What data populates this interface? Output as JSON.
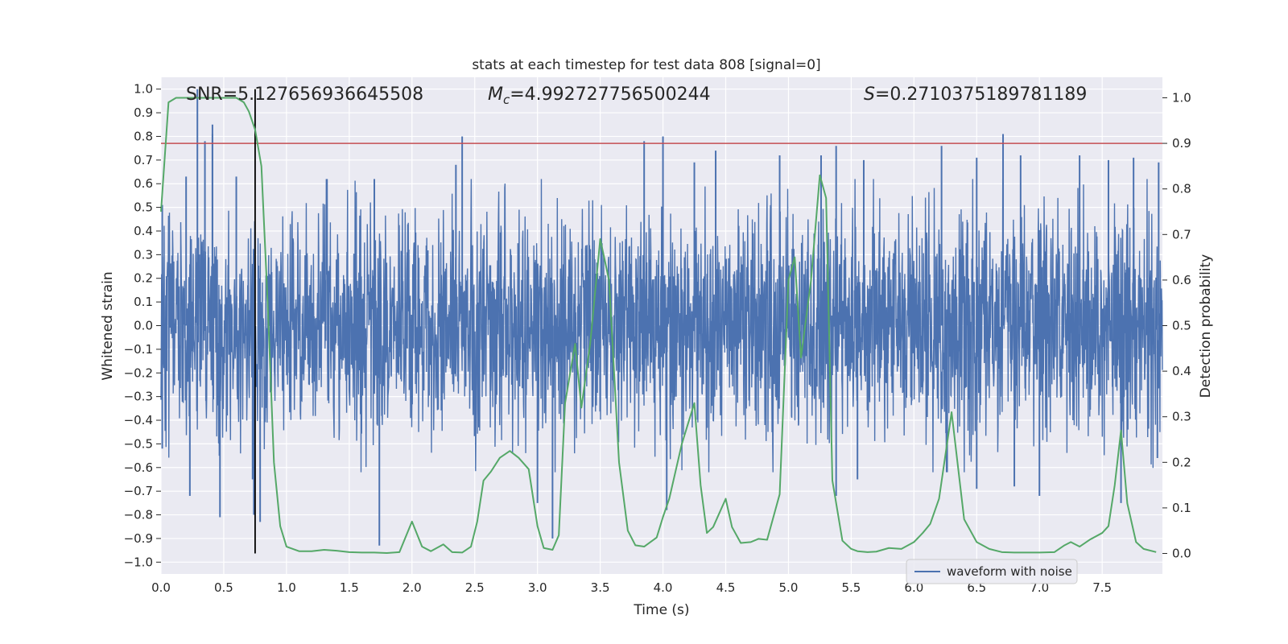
{
  "chart_data": {
    "type": "line",
    "title": "stats at each timestep for test data 808 [signal=0]",
    "xlabel": "Time (s)",
    "ylabel_left": "Whitened strain",
    "ylabel_right": "Detection probability",
    "xlim": [
      0.0,
      7.98
    ],
    "ylim_left": [
      -1.05,
      1.05
    ],
    "ylim_right": [
      -0.045,
      1.045
    ],
    "x_ticks": [
      "0.0",
      "0.5",
      "1.0",
      "1.5",
      "2.0",
      "2.5",
      "3.0",
      "3.5",
      "4.0",
      "4.5",
      "5.0",
      "5.5",
      "6.0",
      "6.5",
      "7.0",
      "7.5"
    ],
    "y_left_ticks": [
      "1.0",
      "0.9",
      "0.8",
      "0.7",
      "0.6",
      "0.5",
      "0.4",
      "0.3",
      "0.2",
      "0.1",
      "0.0",
      "−0.1",
      "−0.2",
      "−0.3",
      "−0.4",
      "−0.5",
      "−0.6",
      "−0.7",
      "−0.8",
      "−0.9",
      "−1.0"
    ],
    "y_right_ticks": [
      "1.0",
      "0.9",
      "0.8",
      "0.7",
      "0.6",
      "0.5",
      "0.4",
      "0.3",
      "0.2",
      "0.1",
      "0.0"
    ],
    "grid": true,
    "legend": {
      "position": "lower-right",
      "entries": [
        "waveform with noise"
      ]
    },
    "annotations": {
      "snr": "SNR=5.127656936645508",
      "mc_symbol": "M",
      "mc_sub": "c",
      "mc_value": "=4.992727756500244",
      "s_symbol": "S",
      "s_value": "=0.2710375189781189"
    },
    "threshold": {
      "axis": "right",
      "value": 0.9
    },
    "marker_time": 0.75,
    "waveform": {
      "name": "waveform with noise",
      "axis": "left",
      "t_range": [
        0.0,
        7.98
      ],
      "envelope": 0.45,
      "spikes": [
        {
          "t": 0.29,
          "v": 1.0
        },
        {
          "t": 0.41,
          "v": 0.85
        },
        {
          "t": 0.41,
          "v": 0.81
        },
        {
          "t": 0.2,
          "v": 0.63
        },
        {
          "t": 0.35,
          "v": 0.78
        },
        {
          "t": 0.23,
          "v": -0.72
        },
        {
          "t": 0.47,
          "v": -0.81
        },
        {
          "t": 0.74,
          "v": -0.8
        },
        {
          "t": 0.79,
          "v": -0.83
        },
        {
          "t": 0.6,
          "v": 0.63
        },
        {
          "t": 0.73,
          "v": -0.65
        },
        {
          "t": 1.74,
          "v": -0.93
        },
        {
          "t": 1.7,
          "v": 0.62
        },
        {
          "t": 2.4,
          "v": 0.8
        },
        {
          "t": 2.35,
          "v": 0.68
        },
        {
          "t": 3.12,
          "v": -0.9
        },
        {
          "t": 3.0,
          "v": -0.75
        },
        {
          "t": 3.85,
          "v": 0.78
        },
        {
          "t": 4.0,
          "v": 0.8
        },
        {
          "t": 4.03,
          "v": -0.78
        },
        {
          "t": 4.25,
          "v": 0.69
        },
        {
          "t": 4.42,
          "v": 0.74
        },
        {
          "t": 4.93,
          "v": 0.72
        },
        {
          "t": 5.26,
          "v": 0.72
        },
        {
          "t": 5.38,
          "v": 0.76
        },
        {
          "t": 5.38,
          "v": -0.72
        },
        {
          "t": 5.6,
          "v": 0.7
        },
        {
          "t": 5.55,
          "v": -0.65
        },
        {
          "t": 6.22,
          "v": 0.76
        },
        {
          "t": 6.5,
          "v": 0.71
        },
        {
          "t": 6.71,
          "v": 0.81
        },
        {
          "t": 6.85,
          "v": 0.72
        },
        {
          "t": 6.5,
          "v": -0.69
        },
        {
          "t": 6.8,
          "v": -0.68
        },
        {
          "t": 7.0,
          "v": -0.72
        },
        {
          "t": 7.32,
          "v": 0.72
        },
        {
          "t": 7.55,
          "v": 0.7
        },
        {
          "t": 7.75,
          "v": 0.71
        },
        {
          "t": 7.95,
          "v": 0.69
        },
        {
          "t": 7.65,
          "v": -0.75
        },
        {
          "t": 7.94,
          "v": -0.56
        },
        {
          "t": 0.01,
          "v": 0.51
        },
        {
          "t": 0.01,
          "v": -0.52
        }
      ]
    },
    "probability": {
      "axis": "right",
      "x": [
        0.0,
        0.06,
        0.12,
        0.2,
        0.3,
        0.4,
        0.5,
        0.6,
        0.66,
        0.7,
        0.75,
        0.8,
        0.85,
        0.9,
        0.95,
        1.0,
        1.1,
        1.2,
        1.3,
        1.4,
        1.5,
        1.6,
        1.7,
        1.8,
        1.9,
        2.0,
        2.08,
        2.15,
        2.25,
        2.32,
        2.4,
        2.47,
        2.52,
        2.57,
        2.63,
        2.7,
        2.78,
        2.85,
        2.93,
        3.0,
        3.05,
        3.12,
        3.17,
        3.22,
        3.3,
        3.35,
        3.42,
        3.5,
        3.57,
        3.65,
        3.72,
        3.78,
        3.85,
        3.95,
        4.0,
        4.05,
        4.15,
        4.25,
        4.3,
        4.35,
        4.4,
        4.5,
        4.55,
        4.62,
        4.7,
        4.76,
        4.83,
        4.93,
        5.0,
        5.05,
        5.1,
        5.18,
        5.25,
        5.3,
        5.35,
        5.43,
        5.5,
        5.55,
        5.63,
        5.7,
        5.8,
        5.9,
        6.0,
        6.07,
        6.13,
        6.2,
        6.3,
        6.4,
        6.5,
        6.6,
        6.7,
        6.8,
        6.9,
        7.0,
        7.12,
        7.2,
        7.25,
        7.32,
        7.4,
        7.5,
        7.55,
        7.6,
        7.65,
        7.7,
        7.77,
        7.83,
        7.93
      ],
      "y": [
        0.75,
        0.99,
        1.0,
        1.0,
        1.0,
        1.0,
        1.0,
        1.0,
        0.99,
        0.97,
        0.93,
        0.85,
        0.55,
        0.2,
        0.06,
        0.015,
        0.005,
        0.005,
        0.008,
        0.006,
        0.003,
        0.002,
        0.002,
        0.001,
        0.003,
        0.07,
        0.015,
        0.005,
        0.02,
        0.003,
        0.002,
        0.015,
        0.07,
        0.16,
        0.18,
        0.21,
        0.225,
        0.21,
        0.185,
        0.06,
        0.012,
        0.008,
        0.04,
        0.33,
        0.46,
        0.32,
        0.46,
        0.69,
        0.6,
        0.2,
        0.05,
        0.018,
        0.015,
        0.035,
        0.08,
        0.12,
        0.24,
        0.33,
        0.15,
        0.045,
        0.058,
        0.12,
        0.058,
        0.023,
        0.025,
        0.032,
        0.03,
        0.13,
        0.6,
        0.65,
        0.43,
        0.6,
        0.83,
        0.78,
        0.16,
        0.028,
        0.01,
        0.005,
        0.003,
        0.004,
        0.012,
        0.01,
        0.025,
        0.045,
        0.065,
        0.12,
        0.31,
        0.075,
        0.025,
        0.01,
        0.003,
        0.002,
        0.002,
        0.002,
        0.003,
        0.018,
        0.025,
        0.015,
        0.03,
        0.045,
        0.06,
        0.15,
        0.27,
        0.11,
        0.025,
        0.01,
        0.003
      ]
    },
    "colors": {
      "background": "#eaeaf2",
      "grid": "#ffffff",
      "waveform": "#4c72b0",
      "probability": "#55a868",
      "threshold": "#c44e52",
      "marker": "#000000"
    }
  }
}
